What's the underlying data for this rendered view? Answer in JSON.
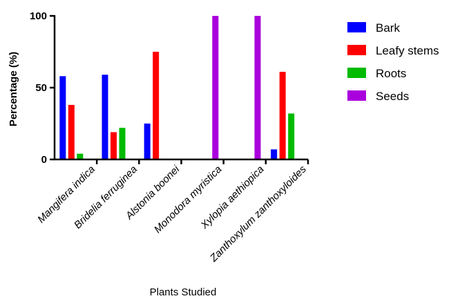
{
  "chart_data": {
    "type": "bar",
    "title": "",
    "xlabel": "Plants Studied",
    "ylabel": "Percentage (%)",
    "ylim": [
      0,
      100
    ],
    "yticks": [
      0,
      50,
      100
    ],
    "grid": false,
    "legend_position": "top-right",
    "categories": [
      "Mangifera indica",
      "Bridelia ferruginea",
      "Alstonia boonei",
      "Monodora myristica",
      "Xylopia aethiopica",
      "Zanthoxylum zanthoxyloides"
    ],
    "series": [
      {
        "name": "Bark",
        "color": "#0000ff",
        "values": [
          58,
          59,
          25,
          0,
          0,
          7
        ]
      },
      {
        "name": "Leafy stems",
        "color": "#ff0000",
        "values": [
          38,
          19,
          75,
          0,
          0,
          61
        ]
      },
      {
        "name": "Roots",
        "color": "#00bb00",
        "values": [
          4,
          22,
          0,
          0,
          0,
          32
        ]
      },
      {
        "name": "Seeds",
        "color": "#aa00dd",
        "values": [
          0,
          0,
          0,
          100,
          100,
          0
        ]
      }
    ]
  }
}
